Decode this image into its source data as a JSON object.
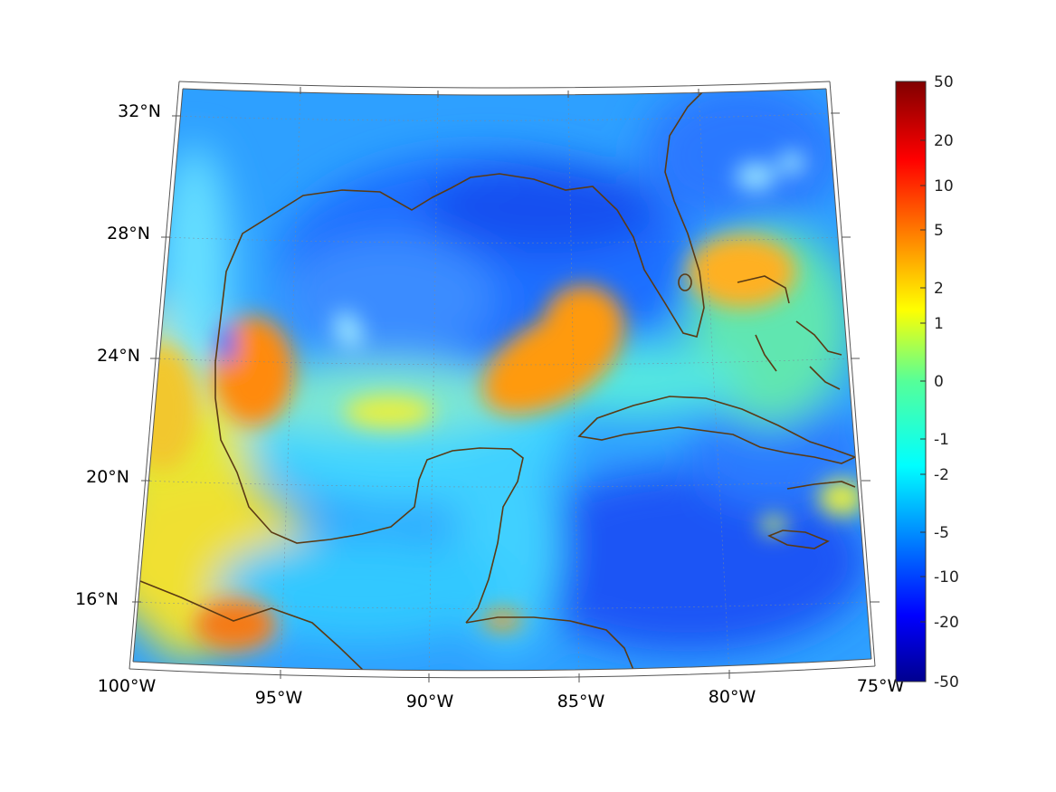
{
  "map": {
    "region": "Gulf of Mexico and Caribbean",
    "projection": "conic",
    "lat_labels": [
      "32°N",
      "28°N",
      "24°N",
      "20°N",
      "16°N"
    ],
    "lon_labels": [
      "100°W",
      "95°W",
      "90°W",
      "85°W",
      "80°W",
      "75°W"
    ],
    "coastline_color": "#5a3a14",
    "grid": true
  },
  "colorbar": {
    "colormap": "jet",
    "orientation": "vertical",
    "placement": "right",
    "labels": [
      "50",
      "20",
      "10",
      "5",
      "2",
      "1",
      "0",
      "-1",
      "-2",
      "-5",
      "-10",
      "-20",
      "-50"
    ]
  }
}
